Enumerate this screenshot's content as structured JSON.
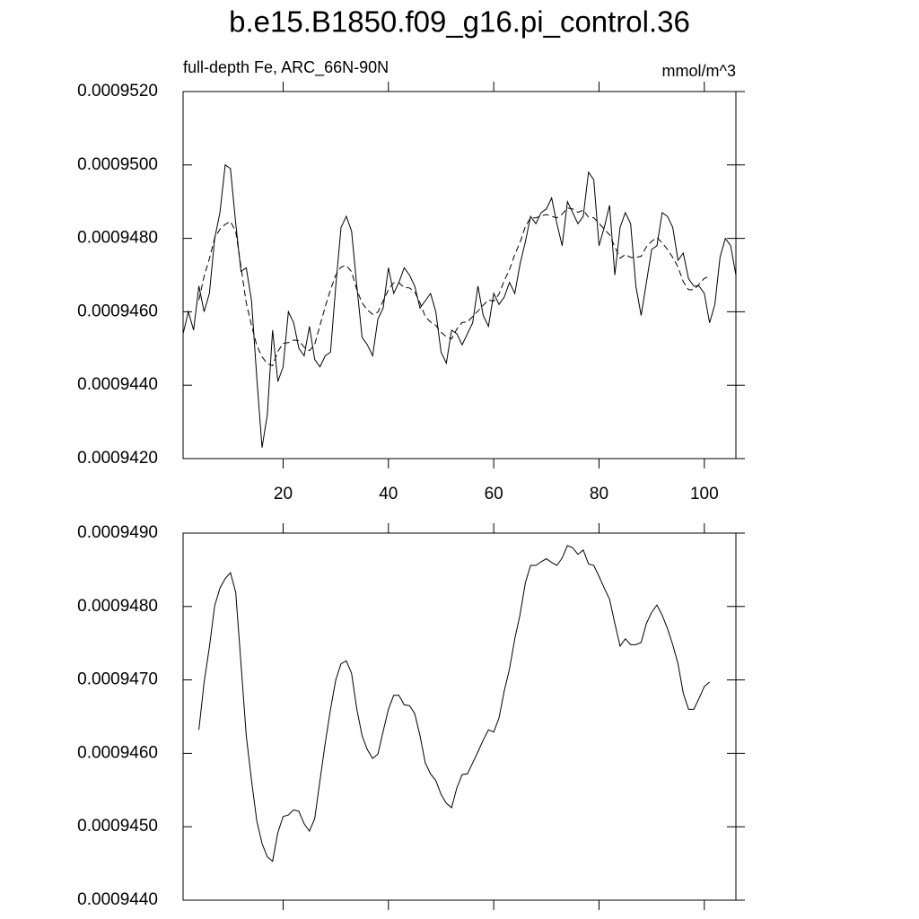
{
  "chart_data": [
    {
      "type": "line",
      "title": "b.e15.B1850.f09_g16.pi_control.36",
      "left_string": "full-depth Fe, ARC_66N-90N",
      "right_string": "mmol/m^3",
      "x": [
        1,
        2,
        3,
        4,
        5,
        6,
        7,
        8,
        9,
        10,
        11,
        12,
        13,
        14,
        15,
        16,
        17,
        18,
        19,
        20,
        21,
        22,
        23,
        24,
        25,
        26,
        27,
        28,
        29,
        30,
        31,
        32,
        33,
        34,
        35,
        36,
        37,
        38,
        39,
        40,
        41,
        42,
        43,
        44,
        45,
        46,
        47,
        48,
        49,
        50,
        51,
        52,
        53,
        54,
        55,
        56,
        57,
        58,
        59,
        60,
        61,
        62,
        63,
        64,
        65,
        66,
        67,
        68,
        69,
        70,
        71,
        72,
        73,
        74,
        75,
        76,
        77,
        78,
        79,
        80,
        81,
        82,
        83,
        84,
        85,
        86,
        87,
        88,
        89,
        90,
        91,
        92,
        93,
        94,
        95,
        96,
        97,
        98,
        99,
        100,
        101,
        102,
        103,
        104,
        105,
        106
      ],
      "series": [
        {
          "color": "#000000",
          "dash": false,
          "values": [
            0.0009454,
            0.000946,
            0.0009455,
            0.0009467,
            0.000946,
            0.0009465,
            0.000948,
            0.0009487,
            0.00095,
            0.0009499,
            0.0009484,
            0.0009471,
            0.0009472,
            0.0009463,
            0.0009442,
            0.0009423,
            0.0009432,
            0.0009455,
            0.0009441,
            0.0009445,
            0.000946,
            0.0009457,
            0.000945,
            0.0009448,
            0.0009456,
            0.0009447,
            0.0009445,
            0.0009448,
            0.0009449,
            0.0009467,
            0.0009483,
            0.0009486,
            0.0009482,
            0.0009467,
            0.0009453,
            0.0009451,
            0.0009448,
            0.0009458,
            0.0009461,
            0.0009472,
            0.0009465,
            0.0009468,
            0.0009472,
            0.000947,
            0.0009467,
            0.0009461,
            0.0009463,
            0.0009465,
            0.000946,
            0.0009449,
            0.0009446,
            0.0009455,
            0.0009454,
            0.0009451,
            0.0009454,
            0.0009457,
            0.0009467,
            0.0009459,
            0.0009456,
            0.0009465,
            0.0009462,
            0.0009464,
            0.0009468,
            0.0009465,
            0.0009473,
            0.0009479,
            0.0009486,
            0.0009484,
            0.0009487,
            0.0009488,
            0.0009491,
            0.0009484,
            0.0009478,
            0.000949,
            0.0009487,
            0.0009484,
            0.0009486,
            0.0009498,
            0.0009496,
            0.0009478,
            0.0009483,
            0.0009489,
            0.000947,
            0.0009483,
            0.0009487,
            0.0009484,
            0.0009467,
            0.0009459,
            0.0009468,
            0.0009477,
            0.0009478,
            0.0009487,
            0.0009486,
            0.0009483,
            0.0009474,
            0.0009476,
            0.0009469,
            0.0009467,
            0.0009467,
            0.0009465,
            0.0009457,
            0.0009462,
            0.0009475,
            0.000948,
            0.0009478,
            0.000947
          ]
        },
        {
          "color": "#000000",
          "dash": true,
          "values": [
            null,
            null,
            null,
            0.00094632,
            0.00094697,
            0.00094745,
            0.00094801,
            0.00094825,
            0.00094838,
            0.00094846,
            0.00094819,
            0.00094722,
            0.00094624,
            0.00094563,
            0.00094508,
            0.00094477,
            0.00094459,
            0.00094453,
            0.00094492,
            0.00094514,
            0.00094516,
            0.00094523,
            0.00094521,
            0.00094504,
            0.00094494,
            0.00094511,
            0.00094563,
            0.00094614,
            0.0009466,
            0.000947,
            0.00094722,
            0.00094726,
            0.00094709,
            0.0009466,
            0.00094624,
            0.00094605,
            0.00094593,
            0.00094599,
            0.0009463,
            0.0009466,
            0.00094679,
            0.00094679,
            0.00094666,
            0.00094665,
            0.00094654,
            0.00094624,
            0.00094587,
            0.00094572,
            0.00094563,
            0.00094544,
            0.00094532,
            0.00094526,
            0.00094553,
            0.00094571,
            0.00094572,
            0.00094587,
            0.00094602,
            0.00094618,
            0.00094632,
            0.00094629,
            0.00094648,
            0.00094685,
            0.00094715,
            0.00094756,
            0.00094789,
            0.00094832,
            0.00094856,
            0.00094856,
            0.00094861,
            0.00094865,
            0.0009486,
            0.00094856,
            0.00094866,
            0.00094883,
            0.0009488,
            0.00094871,
            0.00094877,
            0.00094858,
            0.00094856,
            0.00094841,
            0.00094825,
            0.0009481,
            0.00094777,
            0.00094746,
            0.00094756,
            0.00094748,
            0.00094748,
            0.00094751,
            0.00094777,
            0.00094792,
            0.00094802,
            0.00094788,
            0.0009477,
            0.00094748,
            0.00094722,
            0.00094682,
            0.0009466,
            0.0009466,
            0.00094675,
            0.00094691,
            0.00094697,
            null,
            null,
            null,
            null,
            null
          ]
        }
      ],
      "xlim": [
        1,
        106
      ],
      "xticks": [
        20,
        40,
        60,
        80,
        100
      ],
      "xtick_labels": true,
      "ylim": [
        0.000942,
        0.000952
      ],
      "yticks": [
        {
          "value": 0.000942,
          "label": "0.0009420"
        },
        {
          "value": 0.000944,
          "label": "0.0009440"
        },
        {
          "value": 0.000946,
          "label": "0.0009460"
        },
        {
          "value": 0.000948,
          "label": "0.0009480"
        },
        {
          "value": 0.00095,
          "label": "0.0009500"
        },
        {
          "value": 0.000952,
          "label": "0.0009520"
        }
      ]
    },
    {
      "type": "line",
      "x": [
        4,
        5,
        6,
        7,
        8,
        9,
        10,
        11,
        12,
        13,
        14,
        15,
        16,
        17,
        18,
        19,
        20,
        21,
        22,
        23,
        24,
        25,
        26,
        27,
        28,
        29,
        30,
        31,
        32,
        33,
        34,
        35,
        36,
        37,
        38,
        39,
        40,
        41,
        42,
        43,
        44,
        45,
        46,
        47,
        48,
        49,
        50,
        51,
        52,
        53,
        54,
        55,
        56,
        57,
        58,
        59,
        60,
        61,
        62,
        63,
        64,
        65,
        66,
        67,
        68,
        69,
        70,
        71,
        72,
        73,
        74,
        75,
        76,
        77,
        78,
        79,
        80,
        81,
        82,
        83,
        84,
        85,
        86,
        87,
        88,
        89,
        90,
        91,
        92,
        93,
        94,
        95,
        96,
        97,
        98,
        99,
        100,
        101
      ],
      "series": [
        {
          "color": "#000000",
          "dash": false,
          "values": [
            0.00094632,
            0.00094697,
            0.00094745,
            0.00094801,
            0.00094825,
            0.00094838,
            0.00094846,
            0.00094819,
            0.00094722,
            0.00094624,
            0.00094563,
            0.00094508,
            0.00094477,
            0.00094459,
            0.00094453,
            0.00094492,
            0.00094514,
            0.00094516,
            0.00094523,
            0.00094521,
            0.00094504,
            0.00094494,
            0.00094511,
            0.00094563,
            0.00094614,
            0.0009466,
            0.000947,
            0.00094722,
            0.00094726,
            0.00094709,
            0.0009466,
            0.00094624,
            0.00094605,
            0.00094593,
            0.00094599,
            0.0009463,
            0.0009466,
            0.00094679,
            0.00094679,
            0.00094666,
            0.00094665,
            0.00094654,
            0.00094624,
            0.00094587,
            0.00094572,
            0.00094563,
            0.00094544,
            0.00094532,
            0.00094526,
            0.00094553,
            0.00094571,
            0.00094572,
            0.00094587,
            0.00094602,
            0.00094618,
            0.00094632,
            0.00094629,
            0.00094648,
            0.00094685,
            0.00094715,
            0.00094756,
            0.00094789,
            0.00094832,
            0.00094856,
            0.00094856,
            0.00094861,
            0.00094865,
            0.0009486,
            0.00094856,
            0.00094866,
            0.00094883,
            0.0009488,
            0.00094871,
            0.00094877,
            0.00094858,
            0.00094856,
            0.00094841,
            0.00094825,
            0.0009481,
            0.00094777,
            0.00094746,
            0.00094756,
            0.00094748,
            0.00094748,
            0.00094751,
            0.00094777,
            0.00094792,
            0.00094802,
            0.00094788,
            0.0009477,
            0.00094748,
            0.00094722,
            0.00094682,
            0.0009466,
            0.0009466,
            0.00094675,
            0.00094691,
            0.00094697
          ]
        }
      ],
      "xlim": [
        1,
        106
      ],
      "xticks": [
        20,
        40,
        60,
        80,
        100
      ],
      "xtick_labels": false,
      "ylim": [
        0.000944,
        0.000949
      ],
      "yticks": [
        {
          "value": 0.000944,
          "label": "0.0009440"
        },
        {
          "value": 0.000945,
          "label": "0.0009450"
        },
        {
          "value": 0.000946,
          "label": "0.0009460"
        },
        {
          "value": 0.000947,
          "label": "0.0009470"
        },
        {
          "value": 0.000948,
          "label": "0.0009480"
        },
        {
          "value": 0.000949,
          "label": "0.0009490"
        }
      ]
    }
  ]
}
